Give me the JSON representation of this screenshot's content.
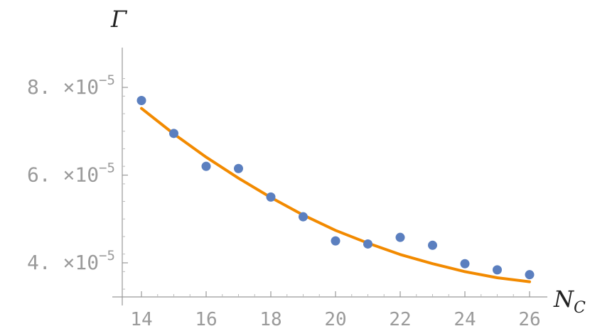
{
  "chart_data": {
    "type": "scatter",
    "xlabel": "N",
    "xlabel_sub": "C",
    "ylabel": "Γ",
    "xlim": [
      13.5,
      26.5
    ],
    "ylim": [
      3.2e-05,
      8.5e-05
    ],
    "x_ticks": [
      14,
      16,
      18,
      20,
      22,
      24,
      26
    ],
    "x_tick_labels": [
      "14",
      "16",
      "18",
      "20",
      "22",
      "24",
      "26"
    ],
    "y_ticks": [
      {
        "value": 8e-05,
        "mantissa": "8.",
        "times": "×10",
        "exp": "−5"
      },
      {
        "value": 6e-05,
        "mantissa": "6.",
        "times": "×10",
        "exp": "−5"
      },
      {
        "value": 4e-05,
        "mantissa": "4.",
        "times": "×10",
        "exp": "−5"
      }
    ],
    "grid": false,
    "series": [
      {
        "kind": "points",
        "color": "#5b7fbf",
        "x": [
          14,
          15,
          16,
          17,
          18,
          19,
          20,
          21,
          22,
          23,
          24,
          25,
          26
        ],
        "y": [
          7.7e-05,
          6.95e-05,
          6.2e-05,
          6.15e-05,
          5.5e-05,
          5.05e-05,
          4.5e-05,
          4.43e-05,
          4.58e-05,
          4.4e-05,
          3.98e-05,
          3.84e-05,
          3.73e-05
        ]
      },
      {
        "kind": "fit",
        "color": "#f28a00",
        "x": [
          14,
          15,
          16,
          17,
          18,
          19,
          20,
          21,
          22,
          23,
          24,
          25,
          26
        ],
        "y": [
          7.52e-05,
          6.94e-05,
          6.41e-05,
          5.93e-05,
          5.49e-05,
          5.09e-05,
          4.74e-05,
          4.45e-05,
          4.19e-05,
          3.98e-05,
          3.8e-05,
          3.66e-05,
          3.57e-05
        ]
      }
    ]
  }
}
